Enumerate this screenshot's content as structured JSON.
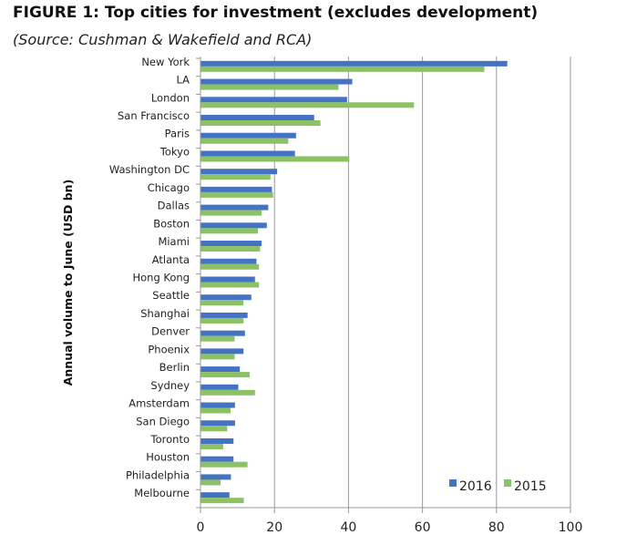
{
  "chart_data": {
    "type": "bar",
    "orientation": "horizontal",
    "title": "FIGURE 1: Top cities for investment (excludes development)",
    "subtitle": "(Source: Cushman & Wakefield and RCA)",
    "xlabel": "",
    "ylabel": "Annual volume to June (USD bn)",
    "xlim": [
      0,
      100
    ],
    "xticks": [
      0,
      20,
      40,
      60,
      80,
      100
    ],
    "grid": true,
    "legend_position": "bottom-right",
    "categories": [
      "New York",
      "LA",
      "London",
      "San Francisco",
      "Paris",
      "Tokyo",
      "Washington DC",
      "Chicago",
      "Dallas",
      "Boston",
      "Miami",
      "Atlanta",
      "Hong Kong",
      "Seattle",
      "Shanghai",
      "Denver",
      "Phoenix",
      "Berlin",
      "Sydney",
      "Amsterdam",
      "San Diego",
      "Toronto",
      "Houston",
      "Philadelphia",
      "Melbourne"
    ],
    "series": [
      {
        "name": "2016",
        "color": "#4472C4",
        "values": [
          82.8,
          40.9,
          39.5,
          30.6,
          25.7,
          25.4,
          20.6,
          19.2,
          18.2,
          17.8,
          16.4,
          15.0,
          14.6,
          13.6,
          12.6,
          11.9,
          11.5,
          10.5,
          10.1,
          9.2,
          9.2,
          8.8,
          8.8,
          8.1,
          7.7
        ]
      },
      {
        "name": "2015",
        "color": "#8CC265",
        "values": [
          76.6,
          37.2,
          57.6,
          32.3,
          23.6,
          40.1,
          18.8,
          19.5,
          16.4,
          15.4,
          16.0,
          15.7,
          15.7,
          11.5,
          11.5,
          9.1,
          9.1,
          13.2,
          14.6,
          8.0,
          7.1,
          6.0,
          12.6,
          5.3,
          11.6
        ]
      }
    ]
  }
}
